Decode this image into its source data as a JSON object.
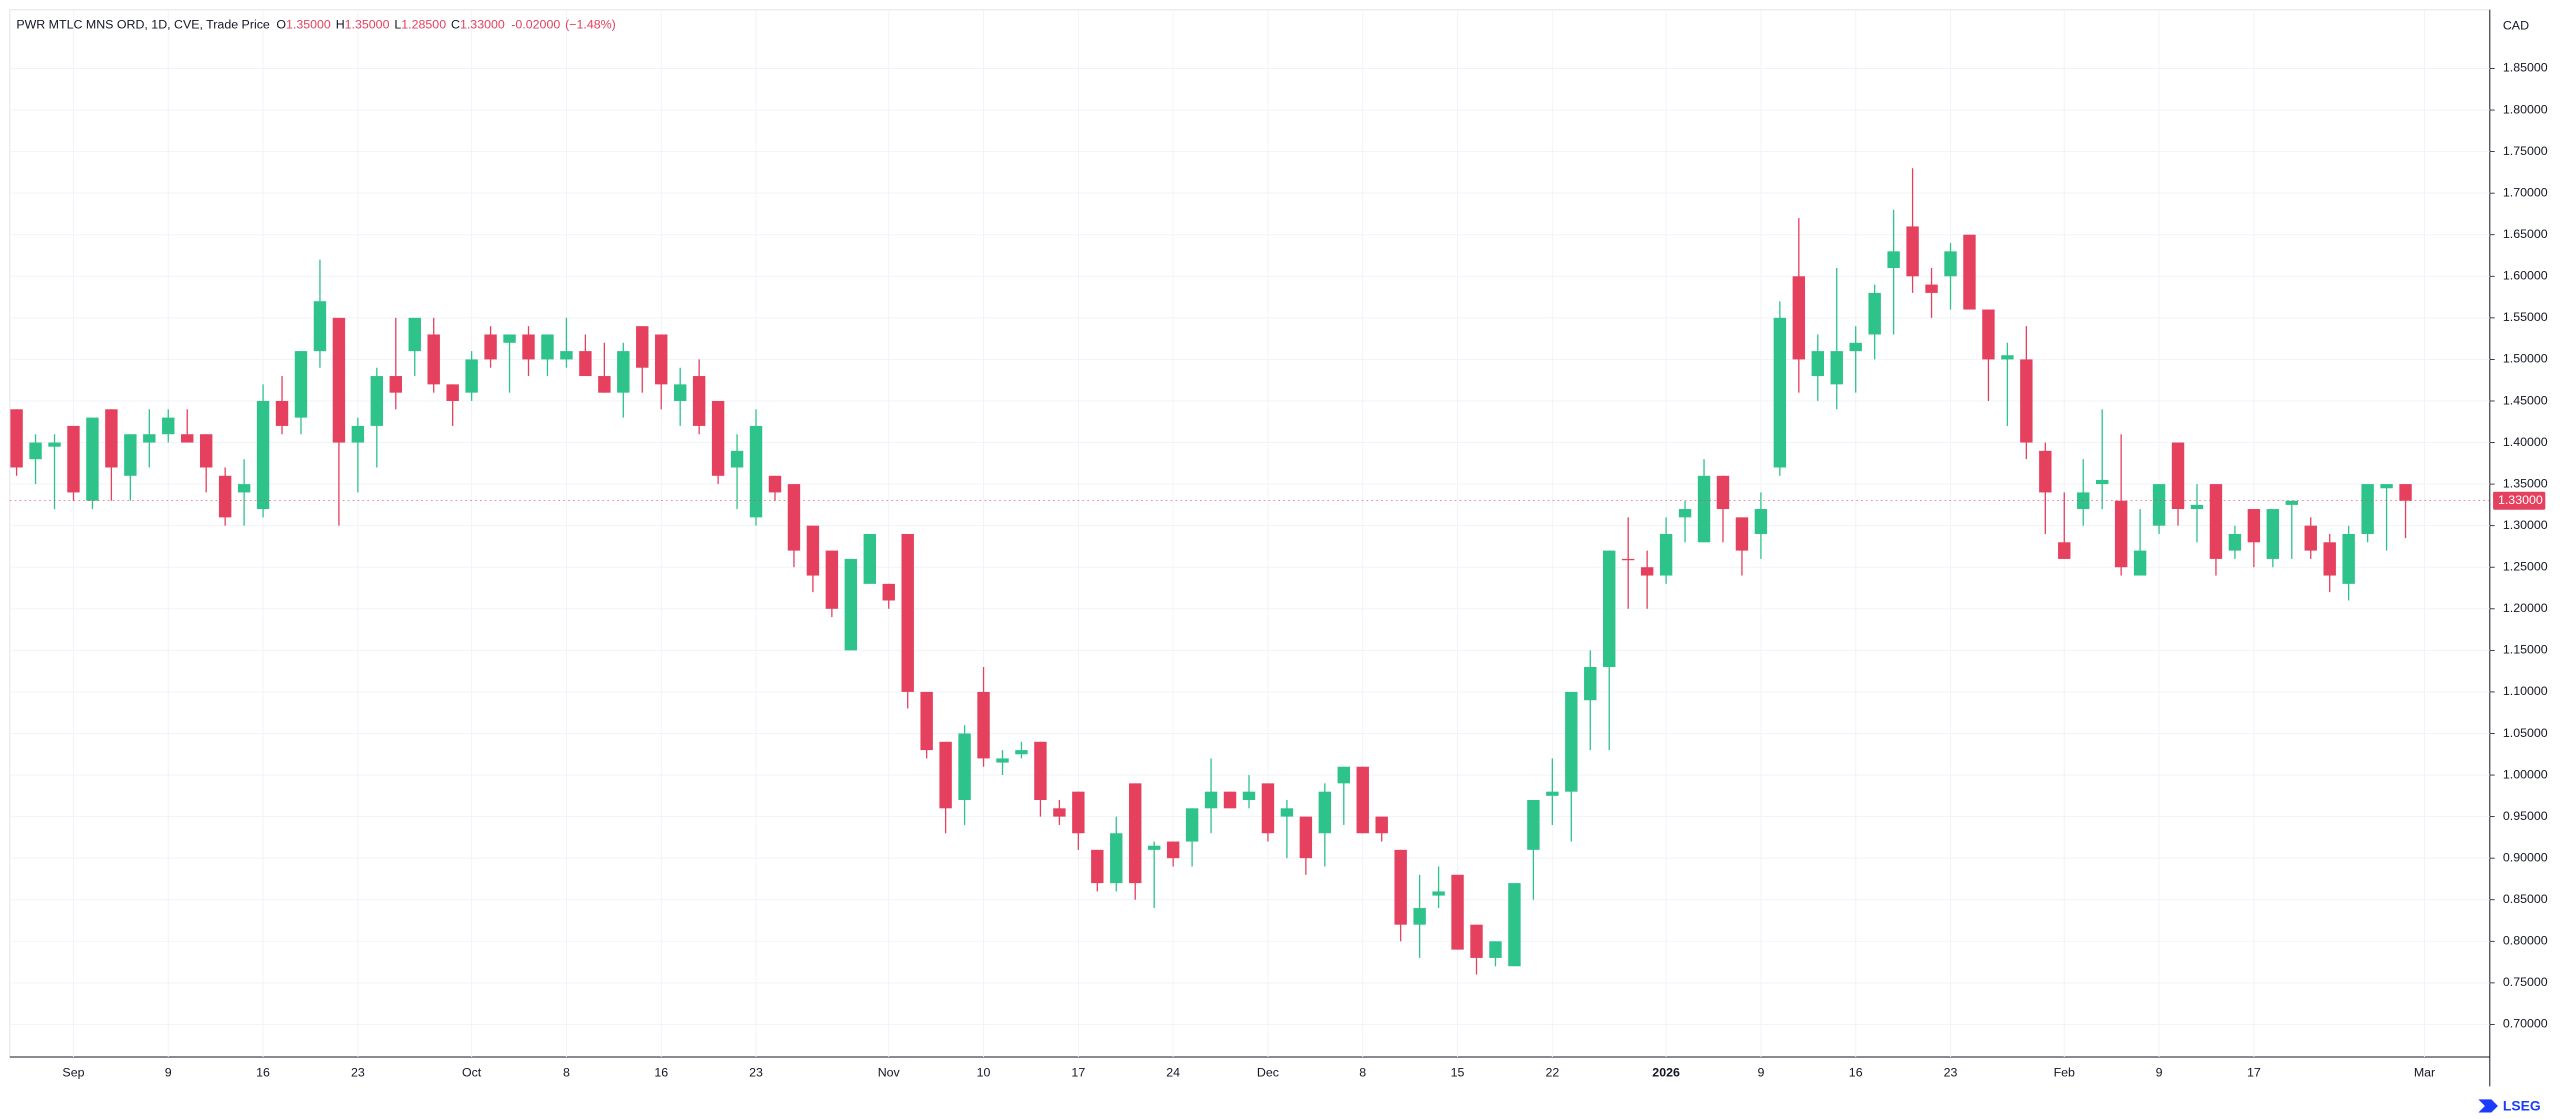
{
  "chart_data": {
    "type": "candlestick",
    "title": "PWR MTLC MNS ORD, 1D, CVE, Trade Price",
    "ohlc_labels": [
      {
        "key": "O",
        "value": "1.35000"
      },
      {
        "key": "H",
        "value": "1.35000"
      },
      {
        "key": "L",
        "value": "1.28500"
      },
      {
        "key": "C",
        "value": "1.33000"
      }
    ],
    "change": "-0.02000",
    "change_pct": "(−1.48%)",
    "y_unit": "CAD",
    "logo": "LSEG",
    "up_color": "#2dc38a",
    "down_color": "#e5405e",
    "grid": true,
    "last_price": {
      "value": 1.33,
      "label": "1.33000"
    },
    "categories": [
      null,
      null,
      null,
      "Sep",
      null,
      null,
      null,
      null,
      "9",
      null,
      null,
      null,
      null,
      "16",
      null,
      null,
      null,
      null,
      "23",
      null,
      null,
      null,
      null,
      null,
      "Oct",
      null,
      null,
      null,
      null,
      "8",
      null,
      null,
      null,
      null,
      "16",
      null,
      null,
      null,
      null,
      "23",
      null,
      null,
      null,
      null,
      null,
      null,
      "Nov",
      null,
      null,
      null,
      null,
      "10",
      null,
      null,
      null,
      null,
      "17",
      null,
      null,
      null,
      null,
      "24",
      null,
      null,
      null,
      null,
      "Dec",
      null,
      null,
      null,
      null,
      "8",
      null,
      null,
      null,
      null,
      "15",
      null,
      null,
      null,
      null,
      "22",
      null,
      null,
      null,
      null,
      null,
      "2026",
      null,
      null,
      null,
      null,
      "9",
      null,
      null,
      null,
      null,
      "16",
      null,
      null,
      null,
      null,
      "23",
      null,
      null,
      null,
      null,
      null,
      "Feb",
      null,
      null,
      null,
      null,
      "9",
      null,
      null,
      null,
      null,
      "17",
      null,
      null,
      null,
      null,
      null,
      null,
      null,
      null,
      "Mar"
    ],
    "open": [
      1.44,
      1.38,
      1.395,
      1.42,
      1.33,
      1.44,
      1.36,
      1.4,
      1.41,
      1.41,
      1.41,
      1.36,
      1.34,
      1.32,
      1.45,
      1.43,
      1.51,
      1.55,
      1.4,
      1.42,
      1.48,
      1.51,
      1.53,
      1.47,
      1.46,
      1.53,
      1.52,
      1.53,
      1.5,
      1.5,
      1.51,
      1.48,
      1.46,
      1.54,
      1.53,
      1.45,
      1.48,
      1.45,
      1.37,
      1.31,
      1.36,
      1.35,
      1.3,
      1.27,
      1.15,
      1.23,
      1.23,
      1.29,
      1.1,
      1.04,
      0.97,
      1.1,
      1.015,
      1.025,
      1.04,
      0.96,
      0.98,
      0.91,
      0.87,
      0.99,
      0.91,
      0.92,
      0.92,
      0.96,
      0.98,
      0.97,
      0.99,
      0.95,
      0.95,
      0.93,
      0.99,
      1.01,
      0.95,
      0.91,
      0.82,
      0.855,
      0.88,
      0.82,
      0.78,
      0.77,
      0.91,
      0.975,
      0.98,
      1.09,
      1.13,
      1.26,
      1.25,
      1.24,
      1.31,
      1.28,
      1.36,
      1.31,
      1.29,
      1.37,
      1.6,
      1.48,
      1.47,
      1.51,
      1.53,
      1.61,
      1.66,
      1.59,
      1.6,
      1.65,
      1.56,
      1.5,
      1.5,
      1.39,
      1.28,
      1.32,
      1.35,
      1.33,
      1.24,
      1.3,
      1.4,
      1.32,
      1.35,
      1.27,
      1.32,
      1.26,
      1.325,
      1.3,
      1.28,
      1.23,
      1.29,
      1.345,
      1.35,
      null
    ],
    "high": [
      1.44,
      1.41,
      1.41,
      1.42,
      1.43,
      1.44,
      1.41,
      1.44,
      1.44,
      1.44,
      1.41,
      1.37,
      1.38,
      1.47,
      1.48,
      1.51,
      1.62,
      1.55,
      1.43,
      1.49,
      1.55,
      1.55,
      1.55,
      1.47,
      1.51,
      1.54,
      1.53,
      1.54,
      1.53,
      1.55,
      1.53,
      1.52,
      1.52,
      1.54,
      1.53,
      1.49,
      1.5,
      1.45,
      1.41,
      1.44,
      1.36,
      1.35,
      1.3,
      1.27,
      1.26,
      1.29,
      1.23,
      1.29,
      1.1,
      1.04,
      1.06,
      1.13,
      1.03,
      1.04,
      1.04,
      0.97,
      0.98,
      0.91,
      0.95,
      0.99,
      0.92,
      0.92,
      0.96,
      1.02,
      0.98,
      1.0,
      0.99,
      0.97,
      0.95,
      0.99,
      1.01,
      1.01,
      0.95,
      0.91,
      0.88,
      0.89,
      0.88,
      0.82,
      0.8,
      0.87,
      0.97,
      1.02,
      1.1,
      1.15,
      1.27,
      1.31,
      1.27,
      1.31,
      1.33,
      1.38,
      1.36,
      1.31,
      1.34,
      1.57,
      1.67,
      1.53,
      1.61,
      1.54,
      1.59,
      1.68,
      1.73,
      1.61,
      1.64,
      1.65,
      1.56,
      1.52,
      1.54,
      1.4,
      1.34,
      1.38,
      1.44,
      1.41,
      1.32,
      1.35,
      1.4,
      1.35,
      1.35,
      1.3,
      1.32,
      1.32,
      1.33,
      1.31,
      1.29,
      1.3,
      1.35,
      1.35,
      1.35,
      null
    ],
    "low": [
      1.36,
      1.35,
      1.32,
      1.33,
      1.32,
      1.33,
      1.33,
      1.37,
      1.4,
      1.4,
      1.34,
      1.3,
      1.3,
      1.31,
      1.41,
      1.41,
      1.49,
      1.3,
      1.34,
      1.37,
      1.44,
      1.48,
      1.46,
      1.42,
      1.45,
      1.49,
      1.46,
      1.48,
      1.48,
      1.49,
      1.48,
      1.46,
      1.43,
      1.46,
      1.44,
      1.42,
      1.41,
      1.35,
      1.32,
      1.3,
      1.33,
      1.25,
      1.22,
      1.19,
      1.15,
      1.23,
      1.2,
      1.08,
      1.02,
      0.93,
      0.94,
      1.01,
      1.0,
      1.02,
      0.95,
      0.94,
      0.91,
      0.86,
      0.86,
      0.85,
      0.84,
      0.89,
      0.89,
      0.93,
      0.96,
      0.96,
      0.92,
      0.9,
      0.88,
      0.89,
      0.94,
      0.93,
      0.92,
      0.8,
      0.78,
      0.84,
      0.79,
      0.76,
      0.77,
      0.77,
      0.85,
      0.94,
      0.92,
      1.03,
      1.03,
      1.2,
      1.2,
      1.23,
      1.28,
      1.28,
      1.28,
      1.24,
      1.26,
      1.36,
      1.46,
      1.45,
      1.44,
      1.46,
      1.5,
      1.53,
      1.58,
      1.55,
      1.56,
      1.56,
      1.45,
      1.42,
      1.38,
      1.29,
      1.26,
      1.3,
      1.32,
      1.24,
      1.24,
      1.29,
      1.3,
      1.28,
      1.24,
      1.26,
      1.25,
      1.25,
      1.26,
      1.26,
      1.22,
      1.21,
      1.28,
      1.27,
      1.285,
      null
    ],
    "close": [
      1.37,
      1.4,
      1.4,
      1.34,
      1.43,
      1.37,
      1.41,
      1.41,
      1.43,
      1.4,
      1.37,
      1.31,
      1.35,
      1.45,
      1.42,
      1.51,
      1.57,
      1.4,
      1.42,
      1.48,
      1.46,
      1.55,
      1.47,
      1.45,
      1.5,
      1.5,
      1.53,
      1.5,
      1.53,
      1.51,
      1.48,
      1.46,
      1.51,
      1.49,
      1.47,
      1.47,
      1.42,
      1.36,
      1.39,
      1.42,
      1.34,
      1.27,
      1.24,
      1.2,
      1.26,
      1.29,
      1.21,
      1.1,
      1.03,
      0.96,
      1.05,
      1.02,
      1.02,
      1.03,
      0.97,
      0.95,
      0.93,
      0.87,
      0.93,
      0.87,
      0.915,
      0.9,
      0.96,
      0.98,
      0.96,
      0.98,
      0.93,
      0.96,
      0.9,
      0.98,
      1.01,
      0.93,
      0.93,
      0.82,
      0.84,
      0.86,
      0.79,
      0.78,
      0.8,
      0.87,
      0.97,
      0.98,
      1.1,
      1.13,
      1.27,
      1.259,
      1.24,
      1.29,
      1.32,
      1.36,
      1.32,
      1.27,
      1.32,
      1.55,
      1.5,
      1.51,
      1.51,
      1.52,
      1.58,
      1.63,
      1.6,
      1.58,
      1.63,
      1.56,
      1.5,
      1.505,
      1.4,
      1.34,
      1.26,
      1.34,
      1.355,
      1.25,
      1.27,
      1.35,
      1.32,
      1.325,
      1.26,
      1.29,
      1.28,
      1.32,
      1.33,
      1.27,
      1.24,
      1.29,
      1.35,
      1.35,
      1.33,
      null
    ],
    "ylim": [
      0.6608,
      1.9206
    ],
    "yticks": [
      {
        "value": 0.7,
        "label": "0.70000"
      },
      {
        "value": 0.75,
        "label": "0.75000"
      },
      {
        "value": 0.8,
        "label": "0.80000"
      },
      {
        "value": 0.85,
        "label": "0.85000"
      },
      {
        "value": 0.9,
        "label": "0.90000"
      },
      {
        "value": 0.95,
        "label": "0.95000"
      },
      {
        "value": 1.0,
        "label": "1.00000"
      },
      {
        "value": 1.05,
        "label": "1.05000"
      },
      {
        "value": 1.1,
        "label": "1.10000"
      },
      {
        "value": 1.15,
        "label": "1.15000"
      },
      {
        "value": 1.2,
        "label": "1.20000"
      },
      {
        "value": 1.25,
        "label": "1.25000"
      },
      {
        "value": 1.3,
        "label": "1.30000"
      },
      {
        "value": 1.35,
        "label": "1.35000"
      },
      {
        "value": 1.4,
        "label": "1.40000"
      },
      {
        "value": 1.45,
        "label": "1.45000"
      },
      {
        "value": 1.5,
        "label": "1.50000"
      },
      {
        "value": 1.55,
        "label": "1.55000"
      },
      {
        "value": 1.6,
        "label": "1.60000"
      },
      {
        "value": 1.65,
        "label": "1.65000"
      },
      {
        "value": 1.7,
        "label": "1.70000"
      },
      {
        "value": 1.75,
        "label": "1.75000"
      },
      {
        "value": 1.8,
        "label": "1.80000"
      },
      {
        "value": 1.85,
        "label": "1.85000"
      }
    ]
  }
}
